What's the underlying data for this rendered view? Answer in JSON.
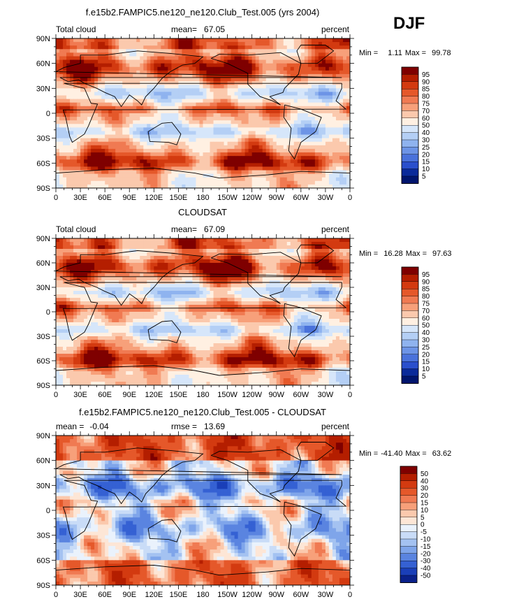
{
  "season": "DJF",
  "x_ticks": [
    "0",
    "30E",
    "60E",
    "90E",
    "120E",
    "150E",
    "180",
    "150W",
    "120W",
    "90W",
    "60W",
    "30W",
    "0"
  ],
  "y_ticks": [
    "90N",
    "60N",
    "30N",
    "0",
    "30S",
    "60S",
    "90S"
  ],
  "panels": [
    {
      "title": "f.e15b2.FAMPIC5.ne120_ne120.Club_Test.005 (yrs 2004)",
      "left_label": "Total cloud",
      "mean_label": "mean=",
      "mean_value": "67.05",
      "unit": "percent",
      "min_label": "Min =",
      "min_value": "1.11",
      "max_label": "Max =",
      "max_value": "99.78",
      "colorbar_labels": [
        "95",
        "90",
        "85",
        "80",
        "75",
        "70",
        "60",
        "50",
        "40",
        "30",
        "25",
        "20",
        "15",
        "10",
        "5"
      ]
    },
    {
      "title": "CLOUDSAT",
      "left_label": "Total cloud",
      "mean_label": "mean=",
      "mean_value": "67.09",
      "unit": "percent",
      "min_label": "Min =",
      "min_value": "16.28",
      "max_label": "Max =",
      "max_value": "97.63",
      "colorbar_labels": [
        "95",
        "90",
        "85",
        "80",
        "75",
        "70",
        "60",
        "50",
        "40",
        "30",
        "25",
        "20",
        "15",
        "10",
        "5"
      ]
    },
    {
      "title": "f.e15b2.FAMPIC5.ne120_ne120.Club_Test.005 - CLOUDSAT",
      "left_label": "mean =",
      "left_value": "-0.04",
      "mid_label": "rmse =",
      "mid_value": "13.69",
      "unit": "percent",
      "min_label": "Min =",
      "min_value": "-41.40",
      "max_label": "Max =",
      "max_value": "63.62",
      "colorbar_labels": [
        "50",
        "40",
        "30",
        "20",
        "15",
        "10",
        "5",
        "0",
        "-5",
        "-10",
        "-15",
        "-20",
        "-30",
        "-40",
        "-50"
      ]
    }
  ],
  "colors": {
    "abs_scale": [
      "#7f0000",
      "#b41e00",
      "#d33a10",
      "#e5582a",
      "#f07a52",
      "#f7a07a",
      "#fbc9ad",
      "#fff0e2",
      "#d6e6fa",
      "#b4cff5",
      "#8fb3ef",
      "#6d94e6",
      "#4a72db",
      "#2a4fcc",
      "#0a2a9a",
      "#00156e"
    ],
    "diff_scale": [
      "#7f0000",
      "#b41e00",
      "#d33a10",
      "#e5582a",
      "#f07a52",
      "#f7a07a",
      "#fbc9ad",
      "#fde6d6",
      "#eaf2fc",
      "#c9dcf7",
      "#a4c2f1",
      "#7fa5ea",
      "#5a84e0",
      "#3561d3",
      "#1a3fb8",
      "#0a218a"
    ],
    "coast": "#000000"
  },
  "chart_data": [
    {
      "type": "heatmap",
      "title": "f.e15b2.FAMPIC5.ne120_ne120.Club_Test.005 (yrs 2004)",
      "variable": "Total cloud",
      "units": "percent",
      "mean": 67.05,
      "min": 1.11,
      "max": 99.78,
      "xlim": [
        0,
        360
      ],
      "ylim": [
        -90,
        90
      ],
      "levels": [
        5,
        10,
        15,
        20,
        25,
        30,
        40,
        50,
        60,
        70,
        75,
        80,
        85,
        90,
        95
      ]
    },
    {
      "type": "heatmap",
      "title": "CLOUDSAT",
      "variable": "Total cloud",
      "units": "percent",
      "mean": 67.09,
      "min": 16.28,
      "max": 97.63,
      "xlim": [
        0,
        360
      ],
      "ylim": [
        -90,
        90
      ],
      "levels": [
        5,
        10,
        15,
        20,
        25,
        30,
        40,
        50,
        60,
        70,
        75,
        80,
        85,
        90,
        95
      ]
    },
    {
      "type": "heatmap",
      "title": "f.e15b2.FAMPIC5.ne120_ne120.Club_Test.005 - CLOUDSAT",
      "units": "percent",
      "mean": -0.04,
      "rmse": 13.69,
      "min": -41.4,
      "max": 63.62,
      "xlim": [
        0,
        360
      ],
      "ylim": [
        -90,
        90
      ],
      "levels": [
        -50,
        -40,
        -30,
        -20,
        -15,
        -10,
        -5,
        0,
        5,
        10,
        15,
        20,
        30,
        40,
        50
      ]
    }
  ]
}
